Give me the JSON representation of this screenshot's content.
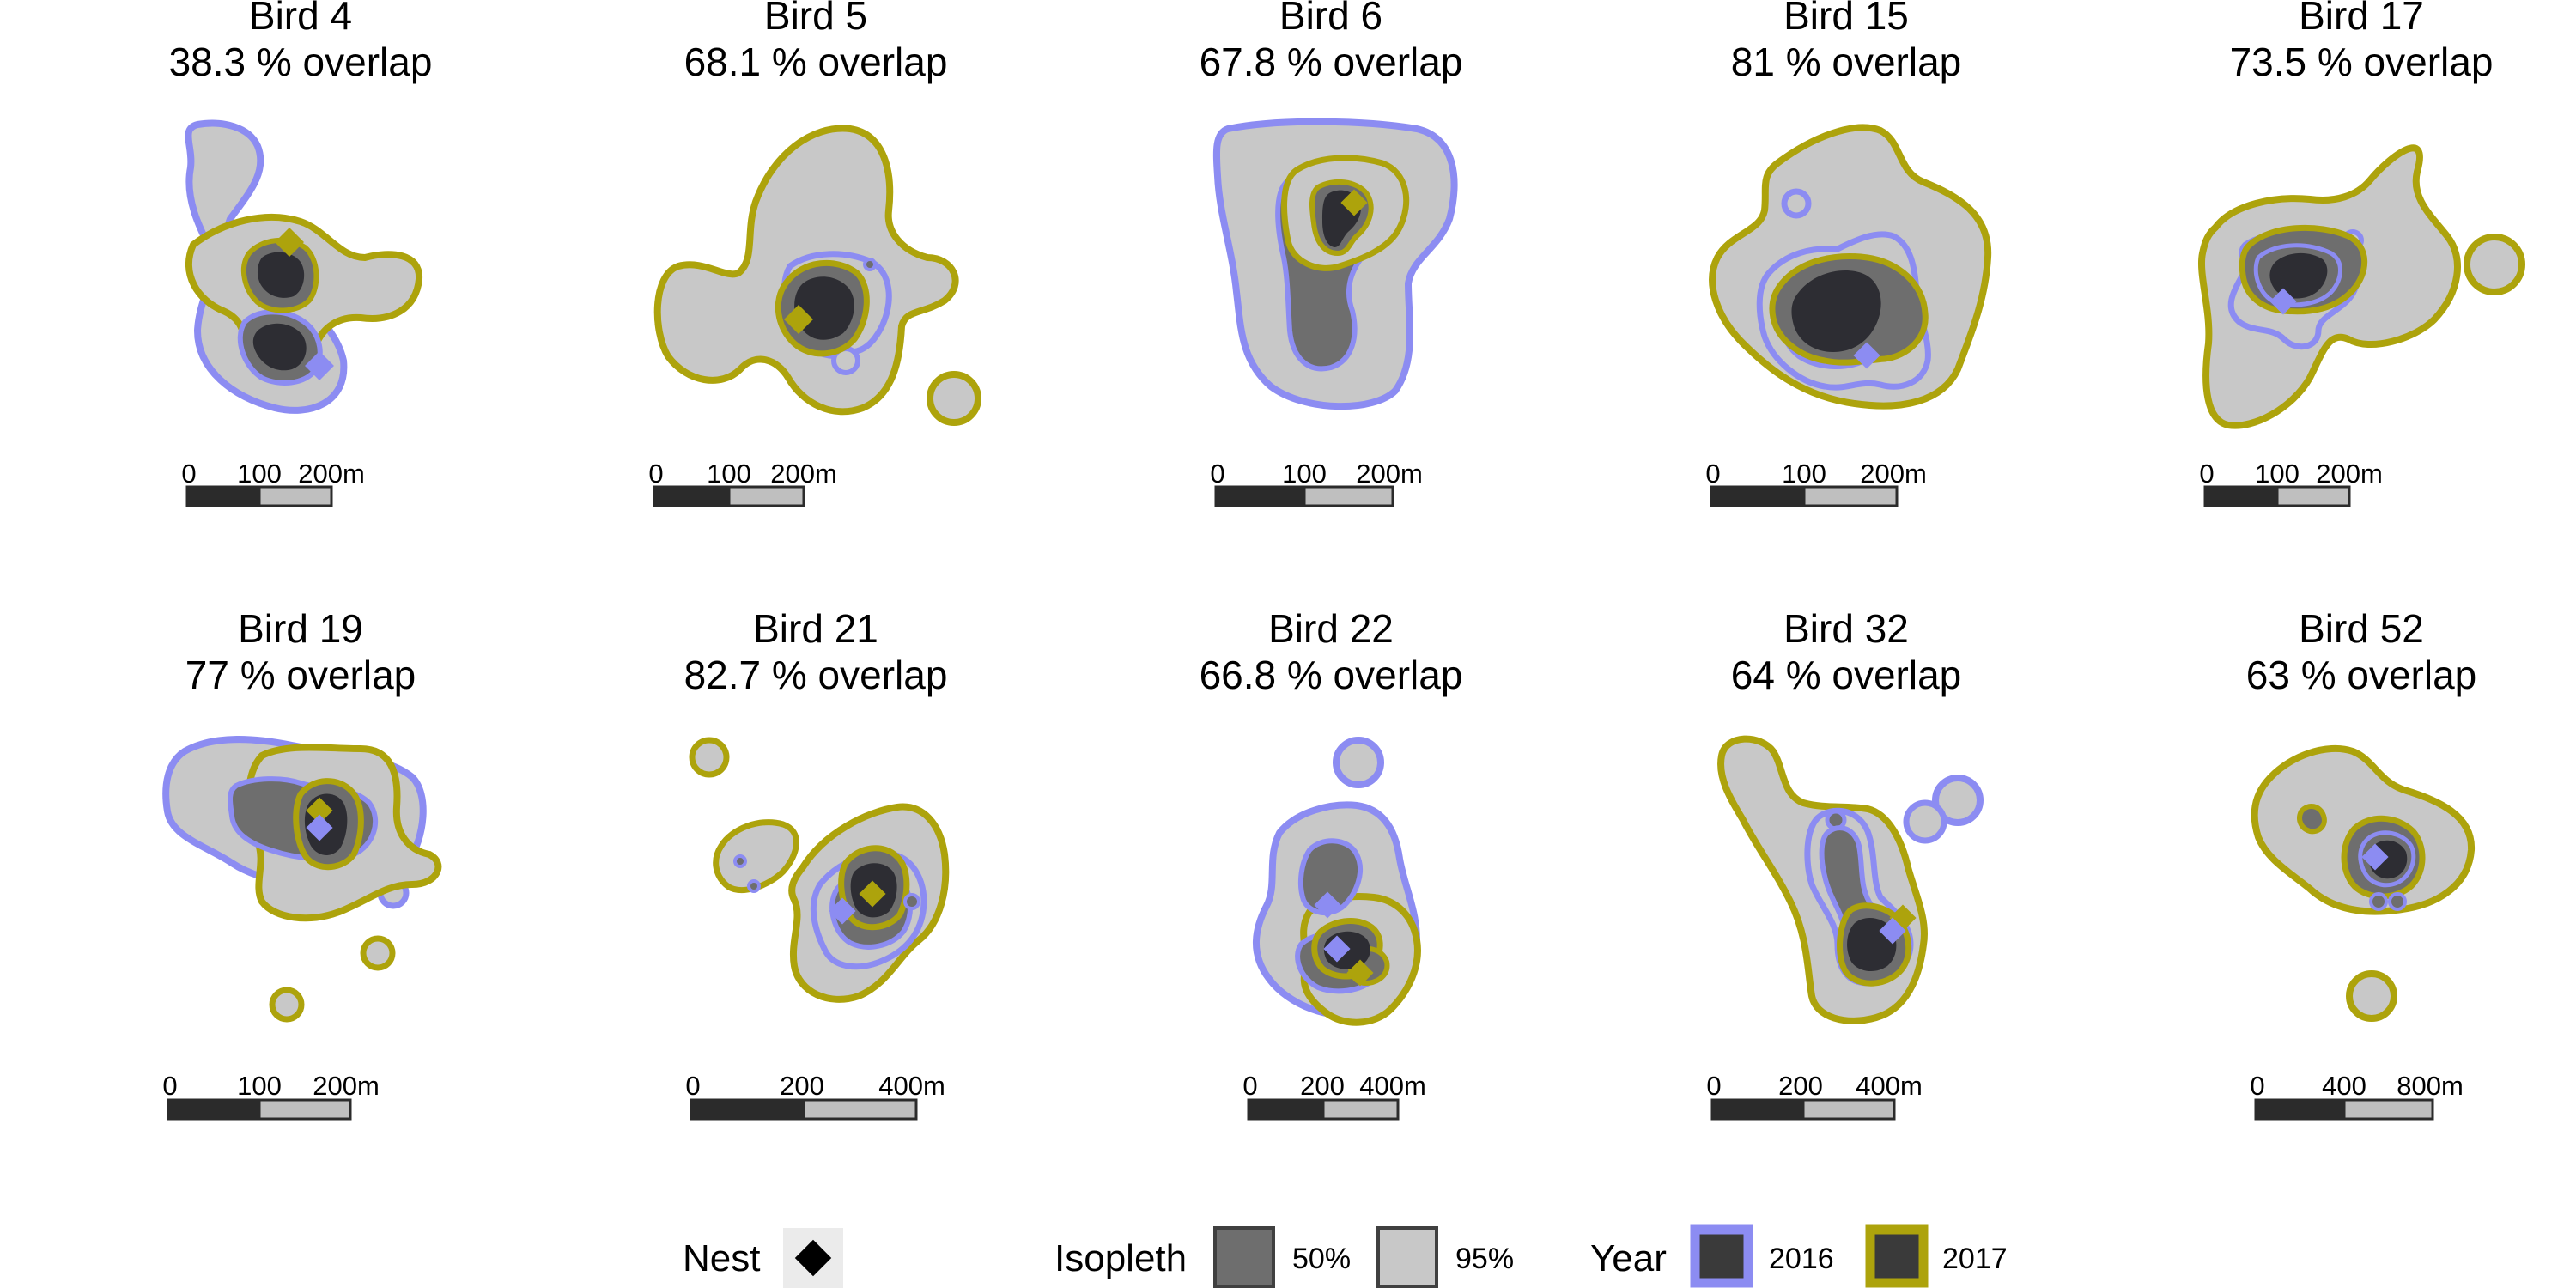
{
  "colors": {
    "year_2016": "#8c8cf2",
    "year_2017": "#ada30c",
    "isopleth_50": "#6e6e6e",
    "isopleth_95": "#c8c8c8",
    "core_fill": "#2d2d33",
    "nest_2016": "#8c8cf2",
    "nest_2017": "#ada30c",
    "scalebar_dark": "#2b2b2b",
    "scalebar_light": "#bfbfbf"
  },
  "chart_data": {
    "type": "small-multiples-map",
    "title": "",
    "panels": [
      {
        "bird": "Bird 4",
        "title": "Bird 4",
        "overlap_pct": 38.3,
        "overlap_label": "38.3 % overlap",
        "scalebar": [
          "0",
          "100",
          "200m"
        ]
      },
      {
        "bird": "Bird 5",
        "title": "Bird 5",
        "overlap_pct": 68.1,
        "overlap_label": "68.1 % overlap",
        "scalebar": [
          "0",
          "100",
          "200m"
        ]
      },
      {
        "bird": "Bird 6",
        "title": "Bird 6",
        "overlap_pct": 67.8,
        "overlap_label": "67.8 % overlap",
        "scalebar": [
          "0",
          "100",
          "200m"
        ]
      },
      {
        "bird": "Bird 15",
        "title": "Bird 15",
        "overlap_pct": 81,
        "overlap_label": "81 % overlap",
        "scalebar": [
          "0",
          "100",
          "200m"
        ]
      },
      {
        "bird": "Bird 17",
        "title": "Bird 17",
        "overlap_pct": 73.5,
        "overlap_label": "73.5 % overlap",
        "scalebar": [
          "0",
          "100",
          "200m"
        ]
      },
      {
        "bird": "Bird 19",
        "title": "Bird 19",
        "overlap_pct": 77,
        "overlap_label": "77 % overlap",
        "scalebar": [
          "0",
          "100",
          "200m"
        ]
      },
      {
        "bird": "Bird 21",
        "title": "Bird 21",
        "overlap_pct": 82.7,
        "overlap_label": "82.7 % overlap",
        "scalebar": [
          "0",
          "200",
          "400m"
        ]
      },
      {
        "bird": "Bird 22",
        "title": "Bird 22",
        "overlap_pct": 66.8,
        "overlap_label": "66.8 % overlap",
        "scalebar": [
          "0",
          "200",
          "400m"
        ]
      },
      {
        "bird": "Bird 32",
        "title": "Bird 32",
        "overlap_pct": 64,
        "overlap_label": "64 % overlap",
        "scalebar": [
          "0",
          "200",
          "400m"
        ]
      },
      {
        "bird": "Bird 52",
        "title": "Bird 52",
        "overlap_pct": 63,
        "overlap_label": "63 % overlap",
        "scalebar": [
          "0",
          "400",
          "800m"
        ]
      }
    ],
    "legend": {
      "nest": {
        "title": "Nest"
      },
      "isopleth": {
        "title": "Isopleth",
        "items": [
          "50%",
          "95%"
        ]
      },
      "year": {
        "title": "Year",
        "items": [
          "2016",
          "2017"
        ]
      }
    }
  }
}
